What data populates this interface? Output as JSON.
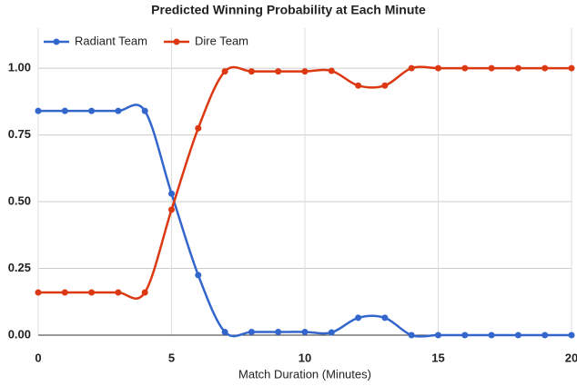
{
  "chart_data": {
    "type": "line",
    "title": "Predicted Winning Probability at Each Minute",
    "x_label": "Match Duration (Minutes)",
    "x": [
      0,
      1,
      2,
      3,
      4,
      5,
      6,
      7,
      8,
      9,
      10,
      11,
      12,
      13,
      14,
      15,
      16,
      17,
      18,
      19,
      20
    ],
    "series": [
      {
        "name": "Radiant Team",
        "color": "#3366cc",
        "values": [
          0.84,
          0.84,
          0.84,
          0.84,
          0.84,
          0.53,
          0.225,
          0.012,
          0.012,
          0.012,
          0.012,
          0.01,
          0.065,
          0.065,
          0,
          0,
          0,
          0,
          0,
          0,
          0
        ]
      },
      {
        "name": "Dire Team",
        "color": "#dc3912",
        "values": [
          0.16,
          0.16,
          0.16,
          0.16,
          0.16,
          0.47,
          0.775,
          0.988,
          0.988,
          0.988,
          0.988,
          0.99,
          0.935,
          0.935,
          1,
          1,
          1,
          1,
          1,
          1,
          1
        ]
      }
    ],
    "xlim": [
      0,
      20
    ],
    "xticks": [
      0,
      5,
      10,
      15,
      20
    ],
    "ylim": [
      0,
      1.15
    ],
    "yticks": [
      {
        "value": 0,
        "label": "0.00"
      },
      {
        "value": 0.25,
        "label": "0.25"
      },
      {
        "value": 0.5,
        "label": "0.50"
      },
      {
        "value": 0.75,
        "label": "0.75"
      },
      {
        "value": 1,
        "label": "1.00"
      }
    ],
    "grid": true,
    "legend": "top-left"
  }
}
